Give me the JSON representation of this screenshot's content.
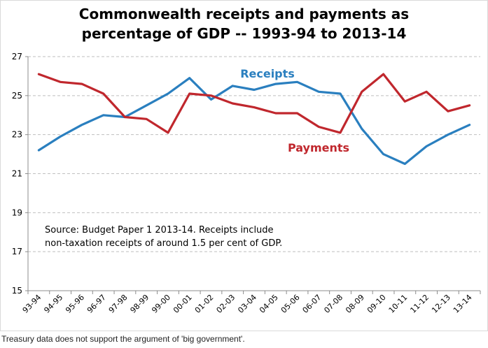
{
  "chart_data": {
    "type": "line",
    "title": "Commonwealth receipts and payments as percentage of GDP -- 1993-94 to 2013-14",
    "title_lines": [
      "Commonwealth receipts and payments as",
      "percentage of GDP -- 1993-94 to 2013-14"
    ],
    "categories": [
      "93-94",
      "94-95",
      "95-96",
      "96-97",
      "97-98",
      "98-99",
      "99-00",
      "00-01",
      "01-02",
      "02-03",
      "03-04",
      "04-05",
      "05-06",
      "06-07",
      "07-08",
      "08-09",
      "09-10",
      "10-11",
      "11-12",
      "12-13",
      "13-14"
    ],
    "series": [
      {
        "name": "Receipts",
        "color": "#2a7fbf",
        "values": [
          22.2,
          22.9,
          23.5,
          24.0,
          23.9,
          24.5,
          25.1,
          25.9,
          24.8,
          25.5,
          25.3,
          25.6,
          25.7,
          25.2,
          25.1,
          23.3,
          22.0,
          21.5,
          22.4,
          23.0,
          23.5
        ]
      },
      {
        "name": "Payments",
        "color": "#c0272d",
        "values": [
          26.1,
          25.7,
          25.6,
          25.1,
          23.9,
          23.8,
          23.1,
          25.1,
          25.0,
          24.6,
          24.4,
          24.1,
          24.1,
          23.4,
          23.1,
          25.2,
          26.1,
          24.7,
          25.2,
          24.2,
          24.5
        ]
      }
    ],
    "yticks": [
      15,
      17,
      19,
      21,
      23,
      25,
      27
    ],
    "ylim": [
      15,
      27
    ],
    "xlabel": "",
    "ylabel": "",
    "grid": true,
    "annotation_lines": [
      "Source:  Budget Paper 1 2013-14.   Receipts include",
      "non-taxation receipts of around 1.5 per cent of GDP."
    ]
  },
  "caption": "Treasury data does not support the argument of 'big government'."
}
